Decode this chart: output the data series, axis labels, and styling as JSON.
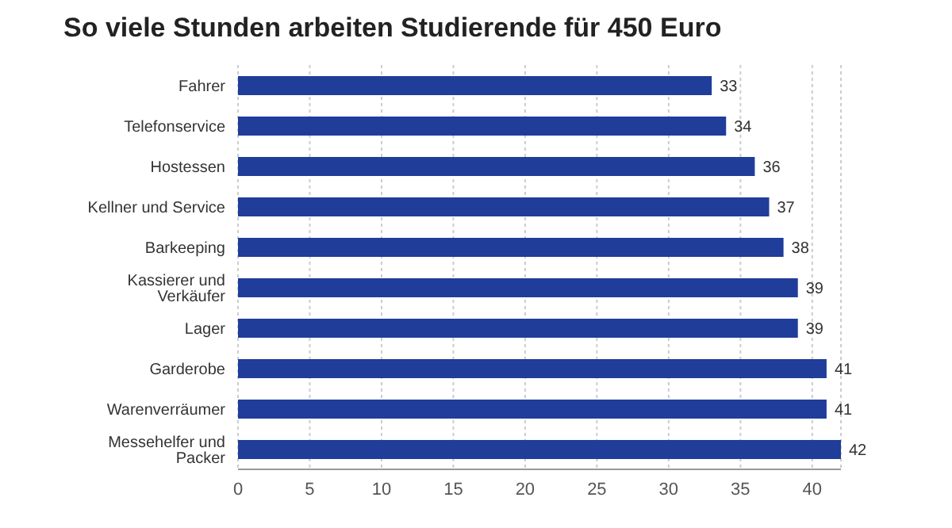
{
  "chart_data": {
    "type": "bar",
    "orientation": "horizontal",
    "title": "So viele Stunden arbeiten Studierende für 450 Euro",
    "categories": [
      "Fahrer",
      "Telefonservice",
      "Hostessen",
      "Kellner und Service",
      "Barkeeping",
      "Kassierer und Verkäufer",
      "Lager",
      "Garderobe",
      "Warenverräumer",
      "Messehelfer und Packer"
    ],
    "values": [
      33,
      34,
      36,
      37,
      38,
      39,
      39,
      41,
      41,
      42
    ],
    "color": "#1f3d99",
    "xlim": [
      0,
      42
    ],
    "xticks": [
      0,
      5,
      10,
      15,
      20,
      25,
      30,
      35,
      40
    ],
    "grid": "x",
    "data_labels": true
  }
}
